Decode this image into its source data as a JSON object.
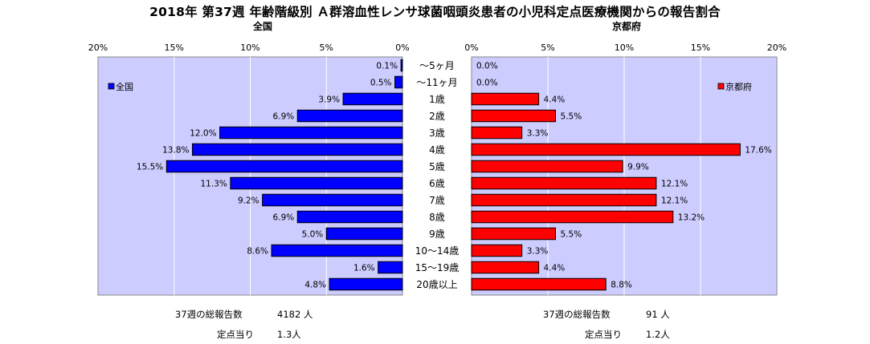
{
  "title": "2018年 第37週 年齢階級別 Ａ群溶血性レンサ球菌咽頭炎患者の小児科定点医療機関からの報告割合",
  "chart_data": {
    "type": "bar",
    "orientation": "horizontal",
    "layout": "population-pyramid",
    "categories": [
      "～5ヶ月",
      "～11ヶ月",
      "1歳",
      "2歳",
      "3歳",
      "4歳",
      "5歳",
      "6歳",
      "7歳",
      "8歳",
      "9歳",
      "10～14歳",
      "15～19歳",
      "20歳以上"
    ],
    "series": [
      {
        "name": "全国",
        "panel_title": "全国",
        "color": "#0000ff",
        "values": [
          0.1,
          0.5,
          3.9,
          6.9,
          12.0,
          13.8,
          15.5,
          11.3,
          9.2,
          6.9,
          5.0,
          8.6,
          1.6,
          4.8
        ],
        "labels": [
          "0.1%",
          "0.5%",
          "3.9%",
          "6.9%",
          "12.0%",
          "13.8%",
          "15.5%",
          "11.3%",
          "9.2%",
          "6.9%",
          "5.0%",
          "8.6%",
          "1.6%",
          "4.8%"
        ]
      },
      {
        "name": "京都府",
        "panel_title": "京都府",
        "color": "#ff0000",
        "values": [
          0.0,
          0.0,
          4.4,
          5.5,
          3.3,
          17.6,
          9.9,
          12.1,
          12.1,
          13.2,
          5.5,
          3.3,
          4.4,
          8.8
        ],
        "labels": [
          "0.0%",
          "0.0%",
          "4.4%",
          "5.5%",
          "3.3%",
          "17.6%",
          "9.9%",
          "12.1%",
          "12.1%",
          "13.2%",
          "5.5%",
          "3.3%",
          "4.4%",
          "8.8%"
        ]
      }
    ],
    "xlim": [
      0,
      20
    ],
    "ticks": [
      0,
      5,
      10,
      15,
      20
    ],
    "tick_labels": [
      "0%",
      "5%",
      "10%",
      "15%",
      "20%"
    ],
    "left_axis_reversed": true,
    "grid": true,
    "legend_position": "top-left / top-right",
    "plot_background": "#ccccff"
  },
  "summary": {
    "national": {
      "reports_label": "37週の総報告数",
      "reports_value": "4182 人",
      "per_site_label": "定点当り",
      "per_site_value": "1.3人"
    },
    "kyoto": {
      "reports_label": "37週の総報告数",
      "reports_value": "91 人",
      "per_site_label": "定点当り",
      "per_site_value": "1.2人"
    }
  }
}
